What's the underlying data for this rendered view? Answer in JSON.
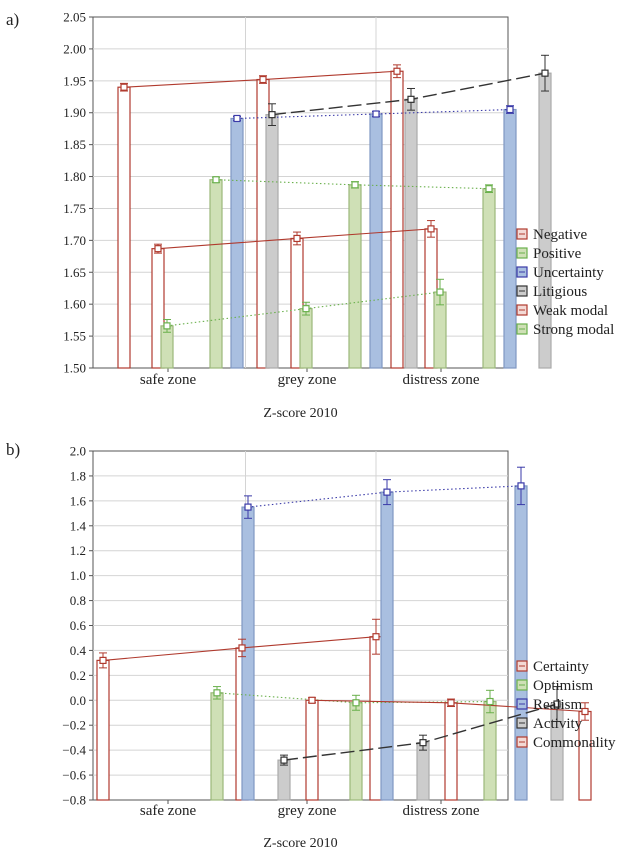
{
  "panel_labels": [
    "a)",
    "b)"
  ],
  "colors": {
    "red": "#b03a2e",
    "green": "#6ab04c",
    "blue": "#3a3aa8",
    "dark": "#333333",
    "bar_green": "#cfe0b6",
    "bar_blue": "#a9bfe0",
    "bar_grey": "#cccccc"
  },
  "chart_data": [
    {
      "type": "bar",
      "panel": "a)",
      "categories": [
        "safe zone",
        "grey zone",
        "distress zone"
      ],
      "xlabel": "Z-score 2010",
      "ylabel": "",
      "ylim": [
        1.5,
        2.05
      ],
      "yticks": [
        "1.50",
        "1.55",
        "1.60",
        "1.65",
        "1.70",
        "1.75",
        "1.80",
        "1.85",
        "1.90",
        "1.95",
        "2.00",
        "2.05"
      ],
      "grid": true,
      "legend_position": "right",
      "series": [
        {
          "name": "Negative",
          "values": [
            1.94,
            1.952,
            1.965
          ],
          "errors": [
            0.006,
            0.006,
            0.01
          ],
          "bar_fill": "#ffffff",
          "bar_stroke": "#b03a2e",
          "line_color": "#b03a2e",
          "line_style": "solid"
        },
        {
          "name": "Positive",
          "values": [
            1.795,
            1.787,
            1.781
          ],
          "errors": [
            0.004,
            0.005,
            0.006
          ],
          "bar_fill": "#cfe0b6",
          "bar_stroke": "#9bb87a",
          "line_color": "#6ab04c",
          "line_style": "dotted"
        },
        {
          "name": "Uncertainty",
          "values": [
            1.891,
            1.898,
            1.905
          ],
          "errors": [
            0.003,
            0.004,
            0.006
          ],
          "bar_fill": "#a9bfe0",
          "bar_stroke": "#7f98c3",
          "line_color": "#3a3aa8",
          "line_style": "dotted"
        },
        {
          "name": "Litigious",
          "values": [
            1.897,
            1.921,
            1.962
          ],
          "errors": [
            0.017,
            0.017,
            0.028
          ],
          "bar_fill": "#cccccc",
          "bar_stroke": "#aaaaaa",
          "line_color": "#333333",
          "line_style": "dashed"
        },
        {
          "name": "Weak modal",
          "values": [
            1.687,
            1.703,
            1.718
          ],
          "errors": [
            0.007,
            0.01,
            0.013
          ],
          "bar_fill": "#ffffff",
          "bar_stroke": "#b03a2e",
          "line_color": "#b03a2e",
          "line_style": "solid"
        },
        {
          "name": "Strong modal",
          "values": [
            1.566,
            1.593,
            1.619
          ],
          "errors": [
            0.01,
            0.01,
            0.02
          ],
          "bar_fill": "#cfe0b6",
          "bar_stroke": "#9bb87a",
          "line_color": "#6ab04c",
          "line_style": "dotted"
        }
      ]
    },
    {
      "type": "bar",
      "panel": "b)",
      "categories": [
        "safe zone",
        "grey zone",
        "distress zone"
      ],
      "xlabel": "Z-score 2010",
      "ylabel": "",
      "ylim": [
        -0.8,
        2.0
      ],
      "yticks": [
        "−0.8",
        "−0.6",
        "−0.4",
        "−0.2",
        "0.0",
        "0.2",
        "0.4",
        "0.6",
        "0.8",
        "1.0",
        "1.2",
        "1.4",
        "1.6",
        "1.8",
        "2.0"
      ],
      "grid": true,
      "legend_position": "right",
      "series": [
        {
          "name": "Certainty",
          "values": [
            0.32,
            0.42,
            0.51
          ],
          "errors": [
            0.06,
            0.07,
            0.14
          ],
          "bar_fill": "#ffffff",
          "bar_stroke": "#b03a2e",
          "line_color": "#b03a2e",
          "line_style": "solid"
        },
        {
          "name": "Optimism",
          "values": [
            0.06,
            -0.02,
            -0.01
          ],
          "errors": [
            0.05,
            0.06,
            0.09
          ],
          "bar_fill": "#cfe0b6",
          "bar_stroke": "#9bb87a",
          "line_color": "#6ab04c",
          "line_style": "dotted"
        },
        {
          "name": "Realism",
          "values": [
            1.55,
            1.67,
            1.72
          ],
          "errors": [
            0.09,
            0.1,
            0.15
          ],
          "bar_fill": "#a9bfe0",
          "bar_stroke": "#7f98c3",
          "line_color": "#3a3aa8",
          "line_style": "dotted"
        },
        {
          "name": "Activity",
          "values": [
            -0.48,
            -0.34,
            -0.03
          ],
          "errors": [
            0.04,
            0.06,
            0.14
          ],
          "bar_fill": "#cccccc",
          "bar_stroke": "#aaaaaa",
          "line_color": "#333333",
          "line_style": "dashed"
        },
        {
          "name": "Commonality",
          "values": [
            0.0,
            -0.02,
            -0.09
          ],
          "errors": [
            0.02,
            0.03,
            0.07
          ],
          "bar_fill": "#ffffff",
          "bar_stroke": "#b03a2e",
          "line_color": "#b03a2e",
          "line_style": "solid"
        }
      ]
    }
  ]
}
